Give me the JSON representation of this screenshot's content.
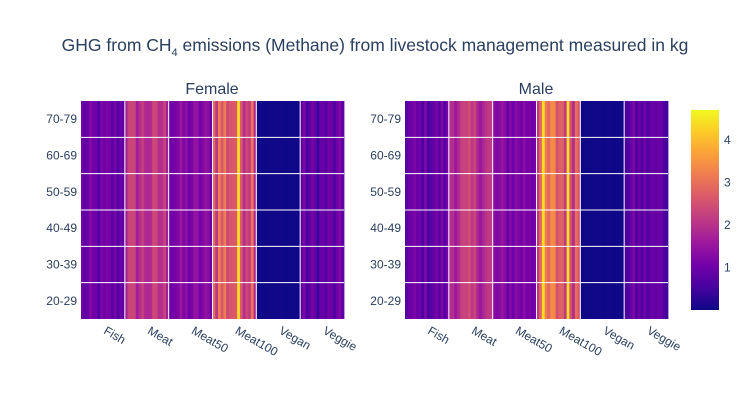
{
  "chart_data": {
    "type": "heatmap",
    "title": {
      "prefix": "GHG from CH",
      "subscript": "4",
      "suffix": " emissions (Methane) from livestock management measured in kg"
    },
    "panels": [
      {
        "title": "Female"
      },
      {
        "title": "Male"
      }
    ],
    "x_categories": [
      "Fish",
      "Meat",
      "Meat50",
      "Meat100",
      "Vegan",
      "Veggie"
    ],
    "y_categories": [
      "20-29",
      "30-39",
      "40-49",
      "50-59",
      "60-69",
      "70-79"
    ],
    "approx_mean_values": {
      "Fish": 0.9,
      "Meat": 2.0,
      "Meat50": 1.2,
      "Meat100": 2.8,
      "Vegan": 0.02,
      "Veggie": 0.8
    },
    "colorscale": {
      "name": "plasma",
      "range": [
        0,
        4.7
      ],
      "colors": [
        "#0d0887",
        "#46039f",
        "#7201a8",
        "#9c179e",
        "#bd3786",
        "#d8576b",
        "#ed7953",
        "#fb9f3a",
        "#fdca26",
        "#f0f921"
      ],
      "ticks": [
        "1",
        "2",
        "3",
        "4"
      ]
    },
    "grid": true
  }
}
